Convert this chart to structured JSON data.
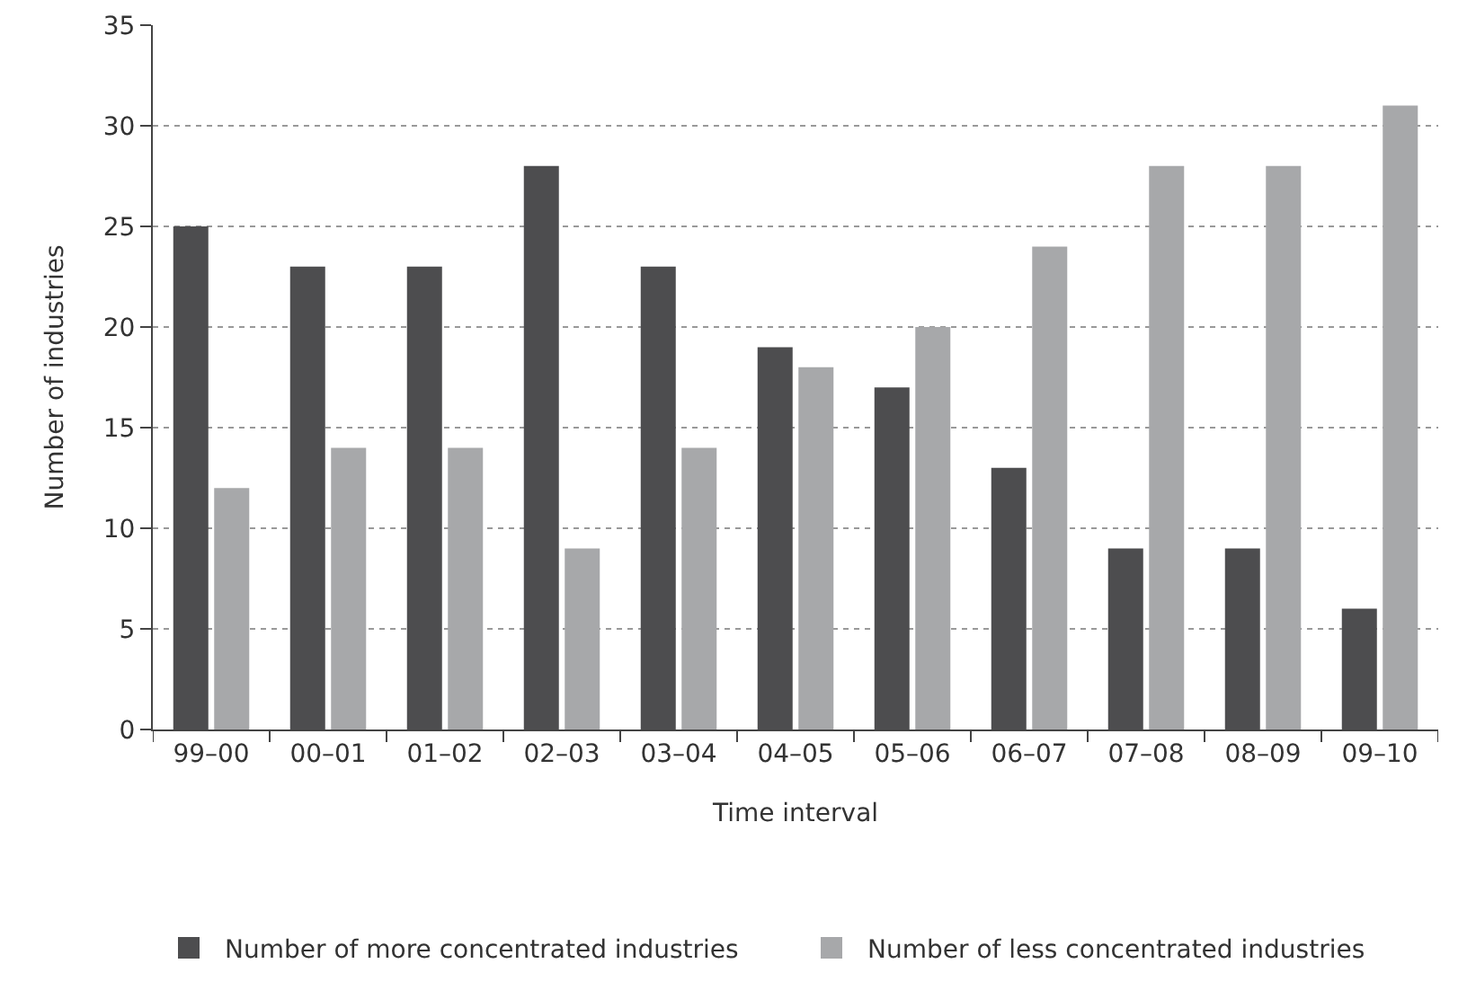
{
  "chart_data": {
    "type": "bar",
    "xlabel": "Time interval",
    "ylabel": "Number of industries",
    "categories": [
      "99–00",
      "00–01",
      "01–02",
      "02–03",
      "03–04",
      "04–05",
      "05–06",
      "06–07",
      "07–08",
      "08–09",
      "09–10"
    ],
    "series": [
      {
        "name": "Number of more concentrated industries",
        "color": "#4d4d4f",
        "values": [
          25,
          23,
          23,
          28,
          23,
          19,
          17,
          13,
          9,
          9,
          6
        ]
      },
      {
        "name": "Number of less concentrated industries",
        "color": "#a7a8aa",
        "values": [
          12,
          14,
          14,
          9,
          14,
          18,
          20,
          24,
          28,
          28,
          31
        ]
      }
    ],
    "ylim": [
      0,
      35
    ],
    "yticks": [
      0,
      5,
      10,
      15,
      20,
      25,
      30,
      35
    ],
    "grid": "y",
    "legend": "bottom"
  }
}
